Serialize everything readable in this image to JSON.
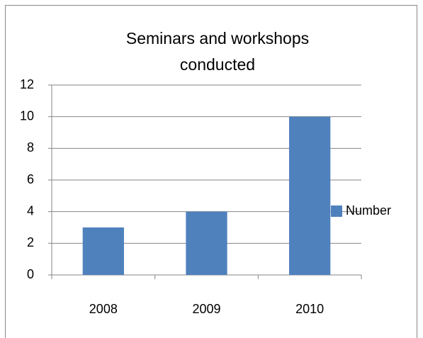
{
  "chart_data": {
    "type": "bar",
    "title": "Seminars and workshops conducted",
    "categories": [
      "2008",
      "2009",
      "2010"
    ],
    "series": [
      {
        "name": "Number",
        "color": "#4f81bd",
        "values": [
          3,
          4,
          10
        ]
      }
    ],
    "ylim": [
      0,
      12
    ],
    "yticks": [
      0,
      2,
      4,
      6,
      8,
      10,
      12
    ],
    "grid": true,
    "legend": "right"
  }
}
